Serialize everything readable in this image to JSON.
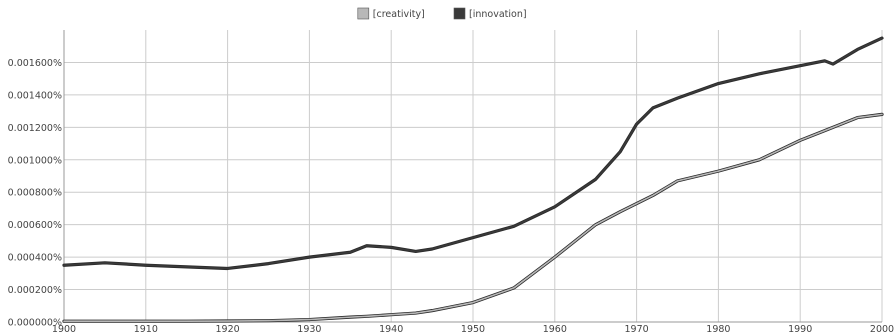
{
  "chart_data": {
    "type": "line",
    "title": "",
    "xlabel": "",
    "ylabel": "",
    "xlim": [
      1900,
      2000
    ],
    "ylim": [
      0,
      0.0018
    ],
    "grid": true,
    "legend_position": "top-center",
    "x_ticks": [
      1900,
      1910,
      1920,
      1930,
      1940,
      1950,
      1960,
      1970,
      1980,
      1990,
      2000
    ],
    "x_tick_labels": [
      "1900",
      "1910",
      "1920",
      "1930",
      "1940",
      "1950",
      "1960",
      "1970",
      "1980",
      "1990",
      "2000"
    ],
    "y_ticks": [
      0,
      0.0002,
      0.0004,
      0.0006,
      0.0008,
      0.001,
      0.0012,
      0.0014,
      0.0016
    ],
    "y_tick_labels": [
      "0.000000%",
      "0.000200%",
      "0.000400%",
      "0.000600%",
      "0.000800%",
      "0.001000%",
      "0.001200%",
      "0.001400%",
      "0.001600%"
    ],
    "x": [
      1900,
      1905,
      1910,
      1915,
      1920,
      1925,
      1930,
      1935,
      1937,
      1940,
      1943,
      1945,
      1950,
      1955,
      1960,
      1965,
      1968,
      1970,
      1972,
      1975,
      1980,
      1985,
      1990,
      1993,
      1994,
      1995,
      1997,
      2000
    ],
    "series": [
      {
        "name": "[creativity]",
        "color": "#b8b8b8",
        "values": [
          5e-06,
          5e-06,
          5e-06,
          5e-06,
          6e-06,
          8e-06,
          1.5e-05,
          3e-05,
          3.5e-05,
          4.5e-05,
          5.5e-05,
          7e-05,
          0.00012,
          0.00021,
          0.0004,
          0.0006,
          0.00068,
          0.00073,
          0.00078,
          0.00087,
          0.00093,
          0.001,
          0.00112,
          0.00118,
          0.0012,
          0.00122,
          0.00126,
          0.00128
        ]
      },
      {
        "name": "[innovation]",
        "color": "#3a3a3a",
        "values": [
          0.00035,
          0.000365,
          0.00035,
          0.00034,
          0.00033,
          0.00036,
          0.0004,
          0.00043,
          0.00047,
          0.00046,
          0.000435,
          0.00045,
          0.00052,
          0.00059,
          0.00071,
          0.00088,
          0.00105,
          0.00122,
          0.00132,
          0.00138,
          0.00147,
          0.00153,
          0.00158,
          0.00161,
          0.00159,
          0.00162,
          0.00168,
          0.00175
        ]
      }
    ]
  }
}
